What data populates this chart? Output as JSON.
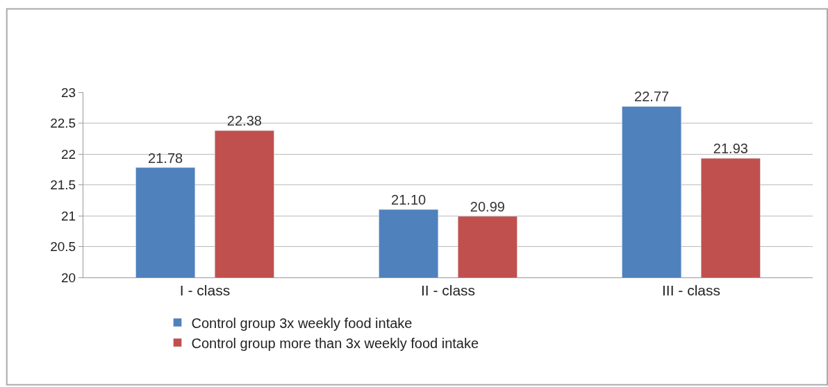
{
  "chart_data": {
    "type": "bar",
    "categories": [
      "I - class",
      "II - class",
      "III - class"
    ],
    "series": [
      {
        "name": "Control group 3x weekly food intake",
        "color": "#4f81bd",
        "values": [
          21.78,
          21.1,
          22.77
        ],
        "value_labels": [
          "21.78",
          "21.10",
          "22.77"
        ]
      },
      {
        "name": "Control group more than 3x weekly food intake",
        "color": "#c0504d",
        "values": [
          22.38,
          20.99,
          21.93
        ],
        "value_labels": [
          "22.38",
          "20.99",
          "21.93"
        ]
      }
    ],
    "ylim": [
      20,
      23
    ],
    "yticks": [
      20,
      20.5,
      21,
      21.5,
      22,
      22.5,
      23
    ],
    "grid": "y",
    "legend": "bottom"
  }
}
